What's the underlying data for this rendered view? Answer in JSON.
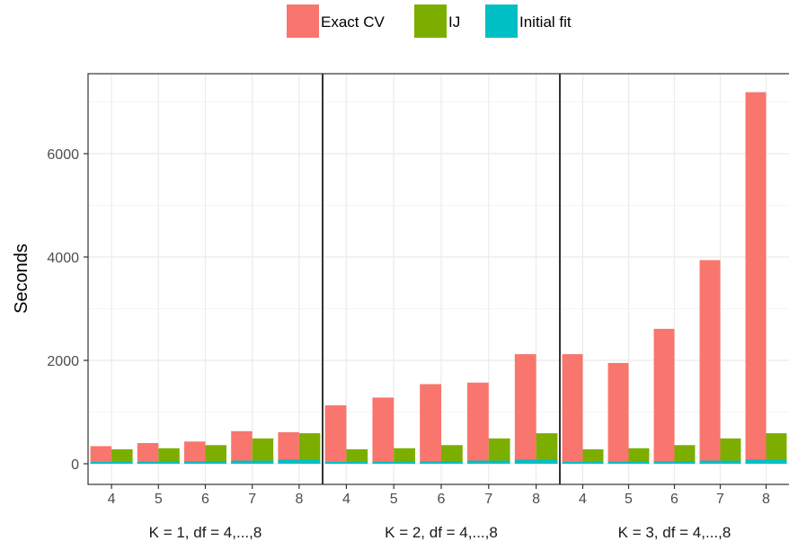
{
  "chart_data": {
    "type": "bar",
    "ylabel": "Seconds",
    "y_ticks": [
      "0",
      "2000",
      "4000",
      "6000"
    ],
    "ylim": [
      -400,
      7500
    ],
    "grid": true,
    "legend_position": "top",
    "legend": [
      {
        "name": "Exact CV",
        "color": "#F8766D"
      },
      {
        "name": "IJ",
        "color": "#7CAE00"
      },
      {
        "name": "Initial fit",
        "color": "#00BFC4"
      }
    ],
    "stacking": "Initial fit is stacked at the base of the Exact CV and IJ bars",
    "facets": [
      {
        "label": "K = 1,  df = 4,...,8",
        "categories": [
          "4",
          "5",
          "6",
          "7",
          "8"
        ],
        "exact_cv": [
          340,
          400,
          430,
          630,
          610
        ],
        "ij": [
          280,
          300,
          360,
          490,
          590
        ],
        "initial_fit": [
          35,
          40,
          45,
          60,
          80
        ]
      },
      {
        "label": "K = 2,  df = 4,...,8",
        "categories": [
          "4",
          "5",
          "6",
          "7",
          "8"
        ],
        "exact_cv": [
          1130,
          1280,
          1540,
          1570,
          2120
        ],
        "ij": [
          280,
          300,
          360,
          490,
          590
        ],
        "initial_fit": [
          35,
          40,
          45,
          60,
          80
        ]
      },
      {
        "label": "K = 3,  df = 4,...,8",
        "categories": [
          "4",
          "5",
          "6",
          "7",
          "8"
        ],
        "exact_cv": [
          2120,
          1950,
          2610,
          3940,
          7190
        ],
        "ij": [
          280,
          300,
          360,
          490,
          590
        ],
        "initial_fit": [
          35,
          40,
          45,
          60,
          80
        ]
      }
    ]
  }
}
